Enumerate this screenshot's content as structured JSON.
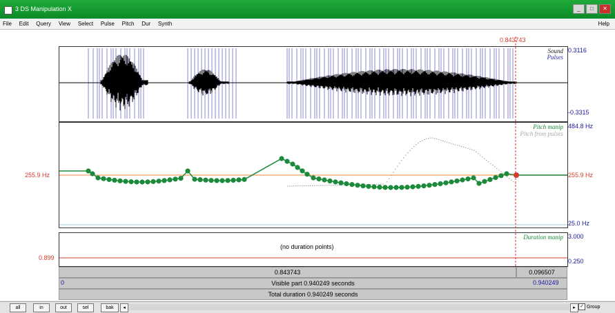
{
  "window": {
    "title": "3 DS Manipulation X",
    "min": "_",
    "max": "□",
    "close": "✕"
  },
  "menu": [
    "File",
    "Edit",
    "Query",
    "View",
    "Select",
    "Pulse",
    "Pitch",
    "Dur",
    "Synth"
  ],
  "menu_help": "Help",
  "cursor": {
    "time": "0.843743",
    "time_selected": "0.843743",
    "right_time": "0.096507"
  },
  "sound": {
    "label1": "Sound",
    "label2": "Pulses",
    "max": "0.3116",
    "min": "-0.3315"
  },
  "pitch": {
    "label1": "Pitch manip",
    "label2": "Pitch from pulses",
    "max": "484.8 Hz",
    "current_left": "255.9 Hz",
    "current_right": "255.9 Hz",
    "min": "25.0 Hz",
    "current_value": 255.9,
    "range_hz": [
      25.0,
      484.8
    ]
  },
  "duration": {
    "label": "Duration manip",
    "empty_text": "(no duration points)",
    "left_value": "0.899",
    "max": "3.000",
    "min": "0.250"
  },
  "visible": {
    "left": "0",
    "text": "Visible part 0.940249 seconds",
    "right": "0.940249"
  },
  "total": {
    "text": "Total duration 0.940249 seconds"
  },
  "bottom": {
    "buttons": [
      "all",
      "in",
      "out",
      "sel",
      "bak"
    ],
    "scroll_left": "◂",
    "scroll_right": "▸",
    "group_label": "Group",
    "group_checked": "✓"
  },
  "colors": {
    "title_green": "#16a033",
    "pulse_blue": "#2a2ab4",
    "pitch_green": "#1b8a3a",
    "cursor_red": "#d23c2c",
    "guide_orange": "#f4b07a"
  }
}
